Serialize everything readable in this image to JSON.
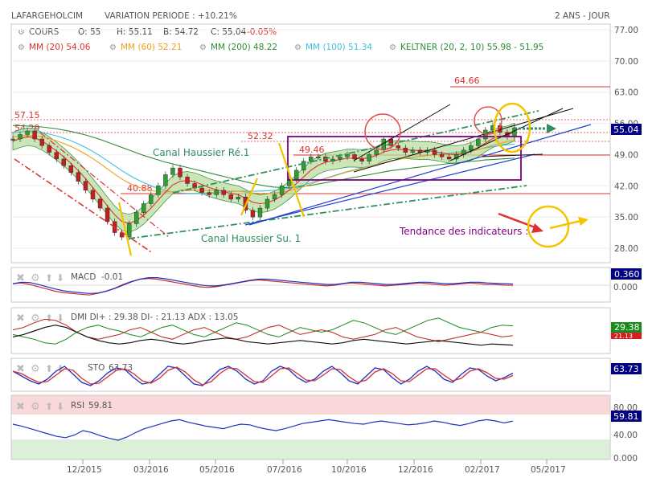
{
  "header": {
    "symbol": "LAFARGEHOLCIM",
    "variation": "VARIATION PERIODE : +10.21%",
    "period": "2 ANS - JOUR"
  },
  "indicators_row1": {
    "cours": "COURS",
    "open": "O: 55",
    "high": "H: 55.11",
    "low": "B: 54.72",
    "close": "C: 55.04",
    "change": "-0.05%"
  },
  "indicators_row2": {
    "mm20": "MM (20) 54.06",
    "mm60": "MM (60) 52.21",
    "mm200": "MM (200) 48.22",
    "mm100": "MM (100) 51.34",
    "keltner": "KELTNER (20, 2, 10) 55.98 - 51.95"
  },
  "colors": {
    "price": "#2f9d2f",
    "mm20": "#e0342b",
    "mm60": "#f0a020",
    "mm200": "#2e8b3a",
    "mm100": "#3fc0e0",
    "keltner": "#2e8b3a",
    "keltner_fill": "#b8dca0",
    "support_line": "#2f8f5f",
    "trend": "#1f3fd0",
    "box": "#800080",
    "circle_red": "#e05050",
    "circle_yellow": "#f5c400",
    "note": "#800080",
    "last_badge": "#000080",
    "dmi_plus_badge": "#1a8a1a",
    "dmi_minus_badge": "#d02020"
  },
  "annotations": {
    "level_6466": "64.66",
    "level_5715": "57.15",
    "level_5429": "54.29",
    "level_5232": "52.32",
    "level_4946": "49.46",
    "level_4088": "40.88",
    "canal_re": "Canal Haussier Ré.1",
    "canal_su": "Canal Haussier Su. 1",
    "tendance": "Tendance des indicateurs :"
  },
  "price_panel": {
    "y_ticks": [
      "77.00",
      "70.00",
      "63.00",
      "56.00",
      "49.00",
      "42.00",
      "35.00",
      "28.00"
    ],
    "last_price": "55.04"
  },
  "macd": {
    "label": "MACD",
    "value": "-0.01",
    "badge": "0.360",
    "ytick": "0.000"
  },
  "dmi": {
    "label": "DMI DI+ : 29.38 DI- : 21.13 ADX : 13.05",
    "badge_plus": "29.38",
    "badge_minus": "21.13"
  },
  "sto": {
    "label": "STO",
    "value": "63.73",
    "badge": "63.73"
  },
  "rsi": {
    "label": "RSI",
    "value": "59.81",
    "badge": "59.81",
    "y_ticks": [
      "80.00",
      "40.00",
      "0.000"
    ]
  },
  "x_axis": {
    "ticks": [
      "12/2015",
      "03/2016",
      "05/2016",
      "07/2016",
      "10/2016",
      "12/2016",
      "02/2017",
      "05/2017"
    ]
  },
  "chart_data": {
    "type": "line",
    "title": "LAFARGEHOLCIM",
    "x_ticks": [
      "12/2015",
      "03/2016",
      "05/2016",
      "07/2016",
      "10/2016",
      "12/2016",
      "02/2017",
      "05/2017"
    ],
    "ylim": [
      25,
      80
    ],
    "series": [
      {
        "name": "COURS",
        "values": [
          52.5,
          53.5,
          54.3,
          52.5,
          51.0,
          49.5,
          48.0,
          46.5,
          45.0,
          43.0,
          41.0,
          39.0,
          37.0,
          34.0,
          31.5,
          30.5,
          33.5,
          36.0,
          38.0,
          40.0,
          42.0,
          44.5,
          46.0,
          44.0,
          42.5,
          41.5,
          40.5,
          40.0,
          41.0,
          40.0,
          39.0,
          39.5,
          36.5,
          35.0,
          37.0,
          39.0,
          40.0,
          42.0,
          43.5,
          45.5,
          47.5,
          48.5,
          48.5,
          47.5,
          48.0,
          48.5,
          49.0,
          48.0,
          47.5,
          49.0,
          50.0,
          52.5,
          51.0,
          50.5,
          49.5,
          50.0,
          49.5,
          50.0,
          49.0,
          48.5,
          48.0,
          49.0,
          50.0,
          51.0,
          52.5,
          54.5,
          55.5,
          54.0,
          53.0,
          55.0
        ]
      },
      {
        "name": "MM (20)",
        "values": [
          52.0,
          52.6,
          53.0,
          52.8,
          52.0,
          51.0,
          49.8,
          48.5,
          47.0,
          45.4,
          43.6,
          41.6,
          39.6,
          37.5,
          35.5,
          34.0,
          33.6,
          34.2,
          35.4,
          37.0,
          38.8,
          40.6,
          42.2,
          43.0,
          43.2,
          42.9,
          42.3,
          41.6,
          41.1,
          40.7,
          40.3,
          40.0,
          39.2,
          38.3,
          38.0,
          38.2,
          38.8,
          39.8,
          41.0,
          42.5,
          44.0,
          45.5,
          46.6,
          47.3,
          47.6,
          47.9,
          48.2,
          48.2,
          48.1,
          48.3,
          48.8,
          49.6,
          50.0,
          50.2,
          50.1,
          50.0,
          49.9,
          49.9,
          49.7,
          49.4,
          49.1,
          49.0,
          49.2,
          49.7,
          50.5,
          51.6,
          52.6,
          53.1,
          53.4,
          54.06
        ]
      },
      {
        "name": "MM (60)",
        "values": [
          53.0,
          53.2,
          53.3,
          53.2,
          53.0,
          52.6,
          52.1,
          51.5,
          50.8,
          50.0,
          49.1,
          48.1,
          47.0,
          45.8,
          44.6,
          43.5,
          42.6,
          41.9,
          41.3,
          40.9,
          40.7,
          40.6,
          40.7,
          40.8,
          40.9,
          41.0,
          41.0,
          41.0,
          41.0,
          40.9,
          40.8,
          40.8,
          40.6,
          40.4,
          40.3,
          40.3,
          40.4,
          40.6,
          40.9,
          41.3,
          41.8,
          42.4,
          43.0,
          43.6,
          44.1,
          44.6,
          45.1,
          45.5,
          45.9,
          46.3,
          46.7,
          47.2,
          47.6,
          47.9,
          48.2,
          48.4,
          48.6,
          48.8,
          48.9,
          49.0,
          49.1,
          49.2,
          49.4,
          49.7,
          50.1,
          50.6,
          51.1,
          51.5,
          51.9,
          52.21
        ]
      },
      {
        "name": "MM (200)",
        "values": [
          55.5,
          55.5,
          55.4,
          55.3,
          55.2,
          55.0,
          54.8,
          54.5,
          54.2,
          53.8,
          53.4,
          52.9,
          52.4,
          51.8,
          51.2,
          50.6,
          50.0,
          49.4,
          48.8,
          48.3,
          47.8,
          47.3,
          46.9,
          46.5,
          46.1,
          45.7,
          45.3,
          44.9,
          44.5,
          44.1,
          43.7,
          43.3,
          42.9,
          42.5,
          42.2,
          41.9,
          41.7,
          41.6,
          41.6,
          41.7,
          41.9,
          42.1,
          42.4,
          42.7,
          43.0,
          43.3,
          43.6,
          43.9,
          44.2,
          44.5,
          44.8,
          45.1,
          45.4,
          45.6,
          45.8,
          46.0,
          46.2,
          46.4,
          46.6,
          46.8,
          47.0,
          47.1,
          47.3,
          47.5,
          47.6,
          47.8,
          47.9,
          48.0,
          48.1,
          48.22
        ]
      },
      {
        "name": "MM (100)",
        "values": [
          54.0,
          54.1,
          54.2,
          54.1,
          53.9,
          53.6,
          53.2,
          52.7,
          52.1,
          51.4,
          50.6,
          49.7,
          48.7,
          47.6,
          46.5,
          45.4,
          44.4,
          43.5,
          42.7,
          42.0,
          41.4,
          40.9,
          40.6,
          40.4,
          40.3,
          40.3,
          40.3,
          40.4,
          40.5,
          40.6,
          40.7,
          40.8,
          40.8,
          40.8,
          40.8,
          40.9,
          41.0,
          41.2,
          41.5,
          41.8,
          42.2,
          42.7,
          43.2,
          43.7,
          44.2,
          44.7,
          45.2,
          45.6,
          46.0,
          46.4,
          46.8,
          47.2,
          47.6,
          47.9,
          48.2,
          48.4,
          48.6,
          48.8,
          49.0,
          49.2,
          49.3,
          49.5,
          49.7,
          49.9,
          50.2,
          50.5,
          50.8,
          51.0,
          51.2,
          51.34
        ]
      }
    ],
    "macd_values": [
      0.2,
      0.3,
      0.1,
      -0.2,
      -0.5,
      -0.8,
      -1.0,
      -1.1,
      -1.2,
      -1.3,
      -1.1,
      -0.8,
      -0.4,
      0.1,
      0.5,
      0.8,
      0.9,
      0.8,
      0.6,
      0.4,
      0.2,
      0.0,
      -0.2,
      -0.3,
      -0.2,
      0.0,
      0.2,
      0.4,
      0.6,
      0.7,
      0.6,
      0.5,
      0.4,
      0.3,
      0.2,
      0.1,
      0.0,
      -0.1,
      0.0,
      0.2,
      0.3,
      0.2,
      0.1,
      0.0,
      -0.1,
      0.0,
      0.1,
      0.2,
      0.3,
      0.2,
      0.1,
      0.0,
      0.1,
      0.2,
      0.3,
      0.2,
      0.1,
      0.1,
      0.0,
      -0.01
    ],
    "sto_values": [
      70,
      55,
      40,
      30,
      45,
      70,
      85,
      60,
      35,
      25,
      40,
      65,
      80,
      75,
      50,
      30,
      35,
      60,
      85,
      80,
      55,
      30,
      25,
      50,
      75,
      85,
      70,
      45,
      30,
      40,
      70,
      85,
      75,
      50,
      35,
      45,
      70,
      85,
      65,
      40,
      30,
      55,
      80,
      75,
      50,
      30,
      45,
      70,
      85,
      70,
      45,
      35,
      60,
      80,
      75,
      55,
      40,
      50,
      63.73
    ],
    "rsi_values": [
      55,
      52,
      48,
      44,
      40,
      36,
      34,
      38,
      45,
      42,
      37,
      33,
      30,
      35,
      42,
      48,
      52,
      56,
      60,
      62,
      58,
      55,
      52,
      50,
      48,
      52,
      55,
      54,
      50,
      47,
      45,
      48,
      52,
      56,
      58,
      60,
      62,
      60,
      58,
      56,
      55,
      58,
      60,
      58,
      56,
      54,
      55,
      57,
      60,
      58,
      55,
      53,
      56,
      60,
      62,
      60,
      57,
      59.81
    ],
    "dmi_plus": [
      22,
      20,
      18,
      15,
      14,
      18,
      24,
      28,
      30,
      27,
      25,
      22,
      20,
      24,
      28,
      30,
      26,
      22,
      20,
      24,
      28,
      32,
      30,
      26,
      22,
      20,
      24,
      28,
      26,
      24,
      26,
      30,
      34,
      32,
      28,
      24,
      22,
      26,
      30,
      34,
      36,
      32,
      28,
      26,
      24,
      28,
      30,
      29.38
    ],
    "dmi_minus": [
      26,
      28,
      32,
      35,
      34,
      30,
      24,
      20,
      18,
      20,
      22,
      26,
      28,
      24,
      20,
      18,
      22,
      26,
      28,
      24,
      20,
      18,
      20,
      24,
      28,
      30,
      26,
      22,
      24,
      26,
      24,
      20,
      18,
      20,
      22,
      26,
      28,
      24,
      20,
      18,
      16,
      18,
      20,
      22,
      24,
      22,
      20,
      21.13
    ],
    "adx": [
      20,
      22,
      25,
      28,
      30,
      28,
      24,
      20,
      17,
      15,
      14,
      15,
      17,
      18,
      17,
      15,
      14,
      15,
      17,
      18,
      19,
      18,
      16,
      15,
      14,
      15,
      16,
      17,
      16,
      15,
      14,
      15,
      17,
      18,
      17,
      16,
      15,
      14,
      15,
      16,
      17,
      16,
      15,
      14,
      13,
      14,
      13.5,
      13.05
    ]
  }
}
